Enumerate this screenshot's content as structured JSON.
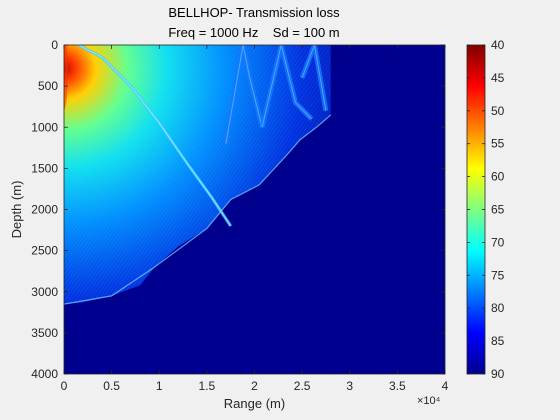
{
  "chart_data": {
    "type": "heatmap",
    "title": "BELLHOP- Transmission loss",
    "subtitle": "Freq = 1000 Hz    Sd = 100 m",
    "xlabel": "Range (m)",
    "ylabel": "Depth (m)",
    "x_exponent_label": "×10⁴",
    "xlim": [
      0,
      40000
    ],
    "ylim": [
      0,
      4000
    ],
    "y_reversed": true,
    "xticks": [
      0,
      5000,
      10000,
      15000,
      20000,
      25000,
      30000,
      35000,
      40000
    ],
    "xtick_labels": [
      "0",
      "0.5",
      "1",
      "1.5",
      "2",
      "2.5",
      "3",
      "3.5",
      "4"
    ],
    "yticks": [
      0,
      500,
      1000,
      1500,
      2000,
      2500,
      3000,
      3500,
      4000
    ],
    "ytick_labels": [
      "0",
      "500",
      "1000",
      "1500",
      "2000",
      "2500",
      "3000",
      "3500",
      "4000"
    ],
    "colorbar": {
      "min": 40,
      "max": 90,
      "reversed": true,
      "colormap": "jet",
      "ticks": [
        40,
        45,
        50,
        55,
        60,
        65,
        70,
        75,
        80,
        85,
        90
      ]
    },
    "background_value": 90,
    "insonified_region_outer_boundary": [
      {
        "range": 0,
        "depth": 3150
      },
      {
        "range": 2000,
        "depth": 3130
      },
      {
        "range": 5000,
        "depth": 3050
      },
      {
        "range": 8000,
        "depth": 2920
      },
      {
        "range": 9500,
        "depth": 2700
      },
      {
        "range": 12000,
        "depth": 2450
      },
      {
        "range": 15000,
        "depth": 2230
      },
      {
        "range": 17500,
        "depth": 1880
      },
      {
        "range": 20500,
        "depth": 1700
      },
      {
        "range": 23300,
        "depth": 1350
      },
      {
        "range": 24800,
        "depth": 1150
      },
      {
        "range": 26500,
        "depth": 1000
      },
      {
        "range": 28000,
        "depth": 850
      },
      {
        "range": 28000,
        "depth": 0
      }
    ],
    "lower_ray_boundary": [
      {
        "range": 0,
        "depth": 3150
      },
      {
        "range": 5000,
        "depth": 3050
      },
      {
        "range": 9500,
        "depth": 2700
      },
      {
        "range": 15000,
        "depth": 2230
      },
      {
        "range": 17500,
        "depth": 1880
      },
      {
        "range": 20500,
        "depth": 1700
      },
      {
        "range": 23300,
        "depth": 1350
      },
      {
        "range": 24800,
        "depth": 1150
      },
      {
        "range": 26500,
        "depth": 1000
      },
      {
        "range": 28000,
        "depth": 850
      }
    ],
    "first_ray_arch": [
      {
        "range": 1500,
        "depth": 0
      },
      {
        "range": 4000,
        "depth": 150
      },
      {
        "range": 7000,
        "depth": 500
      },
      {
        "range": 10000,
        "depth": 950
      },
      {
        "range": 13000,
        "depth": 1450
      },
      {
        "range": 15500,
        "depth": 1850
      },
      {
        "range": 17500,
        "depth": 2200
      }
    ],
    "surface_reflection_arches": [
      [
        {
          "range": 17000,
          "depth": 1200
        },
        {
          "range": 18800,
          "depth": 0
        },
        {
          "range": 19500,
          "depth": 400
        },
        {
          "range": 20800,
          "depth": 1000
        }
      ],
      [
        {
          "range": 20800,
          "depth": 1000
        },
        {
          "range": 22800,
          "depth": 0
        },
        {
          "range": 24300,
          "depth": 700
        },
        {
          "range": 26000,
          "depth": 900
        }
      ],
      [
        {
          "range": 25000,
          "depth": 400
        },
        {
          "range": 26300,
          "depth": 0
        },
        {
          "range": 27500,
          "depth": 800
        }
      ]
    ],
    "near_source_hotspot": {
      "range": 0,
      "depth": 300,
      "value": 45
    }
  }
}
